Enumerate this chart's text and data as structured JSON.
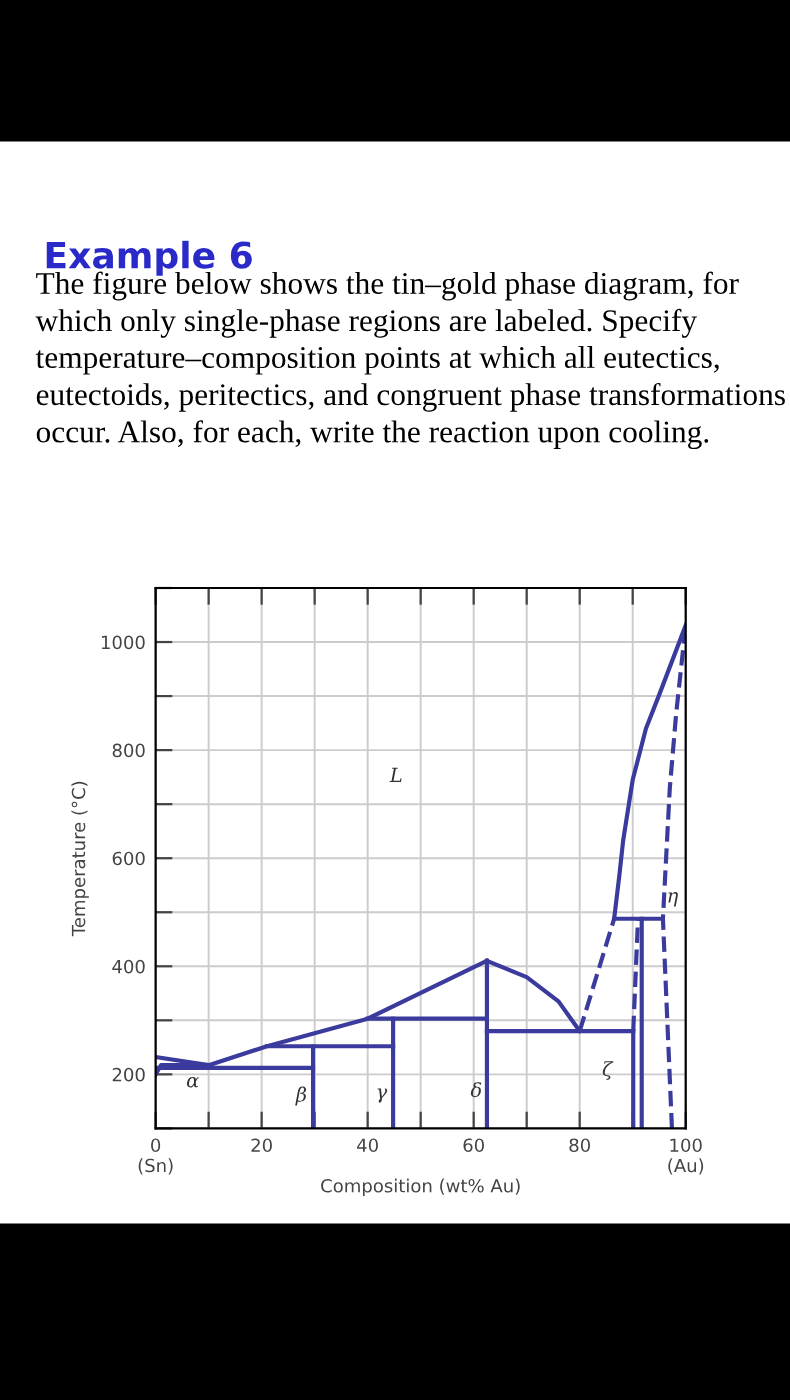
{
  "chart_data": {
    "type": "line",
    "title": "Example 6",
    "subtitle": "The figure below shows the tin–gold phase diagram, for which only single-phase regions are labeled. Specify temperature–composition points at which all eutectics, eutectoids, peritectics, and congruent phase transformations occur. Also, for each, write the reaction upon cooling.",
    "xlabel": "Composition (wt% Au)",
    "ylabel": "Temperature (°C)",
    "xlim": [
      0,
      100
    ],
    "ylim": [
      100,
      1100
    ],
    "xticks": [
      {
        "value": 0,
        "label": "0\n(Sn)"
      },
      {
        "value": 10,
        "label": null
      },
      20,
      {
        "value": 30,
        "label": null
      },
      40,
      {
        "value": 50,
        "label": null
      },
      60,
      {
        "value": 70,
        "label": null
      },
      80,
      {
        "value": 90,
        "label": null
      },
      {
        "value": 100,
        "label": "100\n(Au)"
      }
    ],
    "yticks": [
      {
        "value": 100,
        "label": null
      },
      200,
      {
        "value": 300,
        "label": null
      },
      400,
      {
        "value": 500,
        "label": null
      },
      600,
      {
        "value": 700,
        "label": null
      },
      800,
      {
        "value": 900,
        "label": null
      },
      1000,
      {
        "value": 1100,
        "label": null
      }
    ],
    "grid": true,
    "marker": "none",
    "series": [
      {
        "color": "#3b3b9e",
        "x": [
          0,
          10,
          21,
          40,
          62.5
        ],
        "values": [
          232,
          217,
          252,
          303,
          410
        ]
      },
      {
        "color": "#3b3b9e",
        "x": [
          62.5,
          70,
          76,
          80
        ],
        "values": [
          410,
          380,
          335,
          280
        ]
      },
      {
        "color": "#3b3b9e",
        "x": [
          0,
          1,
          10
        ],
        "values": [
          200,
          217,
          217
        ]
      },
      {
        "color": "#3b3b9e",
        "x": [
          0.5,
          29.7
        ],
        "values": [
          212,
          212
        ]
      },
      {
        "color": "#3b3b9e",
        "x": [
          21,
          44.8
        ],
        "values": [
          252,
          252
        ]
      },
      {
        "color": "#3b3b9e",
        "x": [
          40,
          62.5
        ],
        "values": [
          303,
          303
        ]
      },
      {
        "color": "#3b3b9e",
        "x": [
          29.7,
          29.7
        ],
        "values": [
          100,
          252
        ]
      },
      {
        "color": "#3b3b9e",
        "x": [
          44.8,
          44.8
        ],
        "values": [
          100,
          303
        ]
      },
      {
        "color": "#3b3b9e",
        "x": [
          62.5,
          62.5
        ],
        "values": [
          100,
          410
        ]
      },
      {
        "color": "#3b3b9e",
        "x": [
          62.5,
          90.1
        ],
        "values": [
          280,
          280
        ]
      },
      {
        "color": "#3b3b9e",
        "x": [
          90.1,
          90.1
        ],
        "values": [
          100,
          280
        ]
      },
      {
        "color": "#3b3b9e",
        "x": [
          91.7,
          91.7
        ],
        "values": [
          100,
          488
        ]
      },
      {
        "color": "#3b3b9e",
        "x": [
          86.5,
          95.7
        ],
        "values": [
          488,
          488
        ]
      },
      {
        "color": "#3b3b9e",
        "x": [
          86.5,
          87.5,
          88.2,
          90,
          92.5,
          95.1,
          100
        ],
        "values": [
          488,
          570,
          633,
          745,
          840,
          905,
          1031
        ]
      },
      {
        "color": "#3b3b9e",
        "line_style": "dashed",
        "x": [
          90.1,
          91
        ],
        "values": [
          280,
          488
        ]
      },
      {
        "color": "#3b3b9e",
        "line_style": "dashed",
        "x": [
          80,
          86.5
        ],
        "values": [
          280,
          488
        ]
      },
      {
        "color": "#3b3b9e",
        "line_style": "dashed",
        "x": [
          97.4,
          95.7,
          96.3,
          97,
          98.2,
          100
        ],
        "values": [
          100,
          488,
          600,
          730,
          868,
          1031
        ]
      }
    ],
    "annotations": [
      "L",
      "α",
      "β",
      "γ",
      "δ",
      "ζ",
      "η"
    ]
  }
}
